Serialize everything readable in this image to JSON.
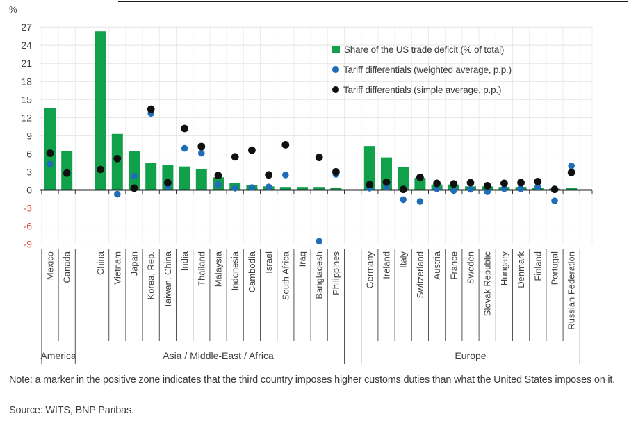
{
  "unit_label": "%",
  "legend": [
    {
      "label": "Share of the US trade deficit (% of total)",
      "marker": "square",
      "color": "#12a14b"
    },
    {
      "label": "Tariff differentials (weighted average, p.p.)",
      "marker": "circle",
      "color": "#1e6db6"
    },
    {
      "label": "Tariff differentials (simple average, p.p.)",
      "marker": "circle",
      "color": "#101010"
    }
  ],
  "note": "Note: a marker in the positive zone indicates that the third country imposes higher customs duties than what the United States imposes on it.",
  "source": "Source: WITS, BNP Paribas.",
  "chart_data": {
    "type": "bar",
    "title": "",
    "ylabel": "%",
    "xlabel": "",
    "ylim": [
      -9,
      27
    ],
    "ytick_step": 3,
    "grid": true,
    "legend_position": "top-right",
    "colors": {
      "bar": "#12a14b",
      "weighted_dot": "#1e6db6",
      "simple_dot": "#101010",
      "negative_axis_label": "#dd4b41",
      "axis_label": "#3f3f3f",
      "axis_line": "#1f1f1f",
      "gridline": "#e4e4e4"
    },
    "series_meta": [
      {
        "key": "share",
        "label": "Share of the US trade deficit (% of total)",
        "type": "bar",
        "color": "#12a14b"
      },
      {
        "key": "weighted",
        "label": "Tariff differentials (weighted average, p.p.)",
        "type": "scatter",
        "color": "#1e6db6"
      },
      {
        "key": "simple",
        "label": "Tariff differentials (simple average, p.p.)",
        "type": "scatter",
        "color": "#101010"
      }
    ],
    "groups": [
      "America",
      "Asia / Middle-East / Africa",
      "Europe"
    ],
    "points": [
      {
        "country": "Mexico",
        "group": "America",
        "share": 13.6,
        "weighted": 4.3,
        "simple": 6.1
      },
      {
        "country": "Canada",
        "group": "America",
        "share": 6.5,
        "weighted": null,
        "simple": 2.8
      },
      {
        "country": "China",
        "group": "Asia / Middle-East / Africa",
        "share": 26.3,
        "weighted": null,
        "simple": 3.4
      },
      {
        "country": "Vietnam",
        "group": "Asia / Middle-East / Africa",
        "share": 9.3,
        "weighted": -0.7,
        "simple": 5.2
      },
      {
        "country": "Japan",
        "group": "Asia / Middle-East / Africa",
        "share": 6.4,
        "weighted": 2.3,
        "simple": 0.3
      },
      {
        "country": "Korea, Rep.",
        "group": "Asia / Middle-East / Africa",
        "share": 4.5,
        "weighted": 12.7,
        "simple": 13.4
      },
      {
        "country": "Taiwan, China",
        "group": "Asia / Middle-East / Africa",
        "share": 4.1,
        "weighted": 0.6,
        "simple": 1.2
      },
      {
        "country": "India",
        "group": "Asia / Middle-East / Africa",
        "share": 3.9,
        "weighted": 6.9,
        "simple": 10.2
      },
      {
        "country": "Thailand",
        "group": "Asia / Middle-East / Africa",
        "share": 3.4,
        "weighted": 6.1,
        "simple": 7.2
      },
      {
        "country": "Malaysia",
        "group": "Asia / Middle-East / Africa",
        "share": 2.1,
        "weighted": 0.9,
        "simple": 2.4
      },
      {
        "country": "Indonesia",
        "group": "Asia / Middle-East / Africa",
        "share": 1.2,
        "weighted": 0.3,
        "simple": 5.5
      },
      {
        "country": "Cambodia",
        "group": "Asia / Middle-East / Africa",
        "share": 0.8,
        "weighted": 0.4,
        "simple": 6.6
      },
      {
        "country": "Israel",
        "group": "Asia / Middle-East / Africa",
        "share": 0.6,
        "weighted": 0.5,
        "simple": 2.5
      },
      {
        "country": "South Africa",
        "group": "Asia / Middle-East / Africa",
        "share": 0.5,
        "weighted": 2.5,
        "simple": 7.5
      },
      {
        "country": "Iraq",
        "group": "Asia / Middle-East / Africa",
        "share": 0.5,
        "weighted": null,
        "simple": null
      },
      {
        "country": "Bangladesh",
        "group": "Asia / Middle-East / Africa",
        "share": 0.5,
        "weighted": -8.5,
        "simple": 5.4
      },
      {
        "country": "Philippines",
        "group": "Asia / Middle-East / Africa",
        "share": 0.4,
        "weighted": 2.6,
        "simple": 3.0
      },
      {
        "country": "Germany",
        "group": "Europe",
        "share": 7.3,
        "weighted": 0.3,
        "simple": 0.9
      },
      {
        "country": "Ireland",
        "group": "Europe",
        "share": 5.4,
        "weighted": 0.5,
        "simple": 1.3
      },
      {
        "country": "Italy",
        "group": "Europe",
        "share": 3.8,
        "weighted": -1.6,
        "simple": 0.1
      },
      {
        "country": "Switzerland",
        "group": "Europe",
        "share": 2.0,
        "weighted": -1.9,
        "simple": 2.1
      },
      {
        "country": "Austria",
        "group": "Europe",
        "share": 0.9,
        "weighted": 0.2,
        "simple": 1.1
      },
      {
        "country": "France",
        "group": "Europe",
        "share": 0.9,
        "weighted": -0.1,
        "simple": 1.0
      },
      {
        "country": "Sweden",
        "group": "Europe",
        "share": 0.6,
        "weighted": 0.1,
        "simple": 1.2
      },
      {
        "country": "Slovak Republic",
        "group": "Europe",
        "share": 0.6,
        "weighted": -0.3,
        "simple": 0.7
      },
      {
        "country": "Hungary",
        "group": "Europe",
        "share": 0.5,
        "weighted": 0.2,
        "simple": 1.1
      },
      {
        "country": "Denmark",
        "group": "Europe",
        "share": 0.5,
        "weighted": 0.2,
        "simple": 1.2
      },
      {
        "country": "Finland",
        "group": "Europe",
        "share": 0.4,
        "weighted": 0.5,
        "simple": 1.4
      },
      {
        "country": "Portugal",
        "group": "Europe",
        "share": 0.2,
        "weighted": -1.8,
        "simple": 0.1
      },
      {
        "country": "Russian Federation",
        "group": "Europe",
        "share": 0.3,
        "weighted": 4.0,
        "simple": 2.9
      }
    ]
  }
}
